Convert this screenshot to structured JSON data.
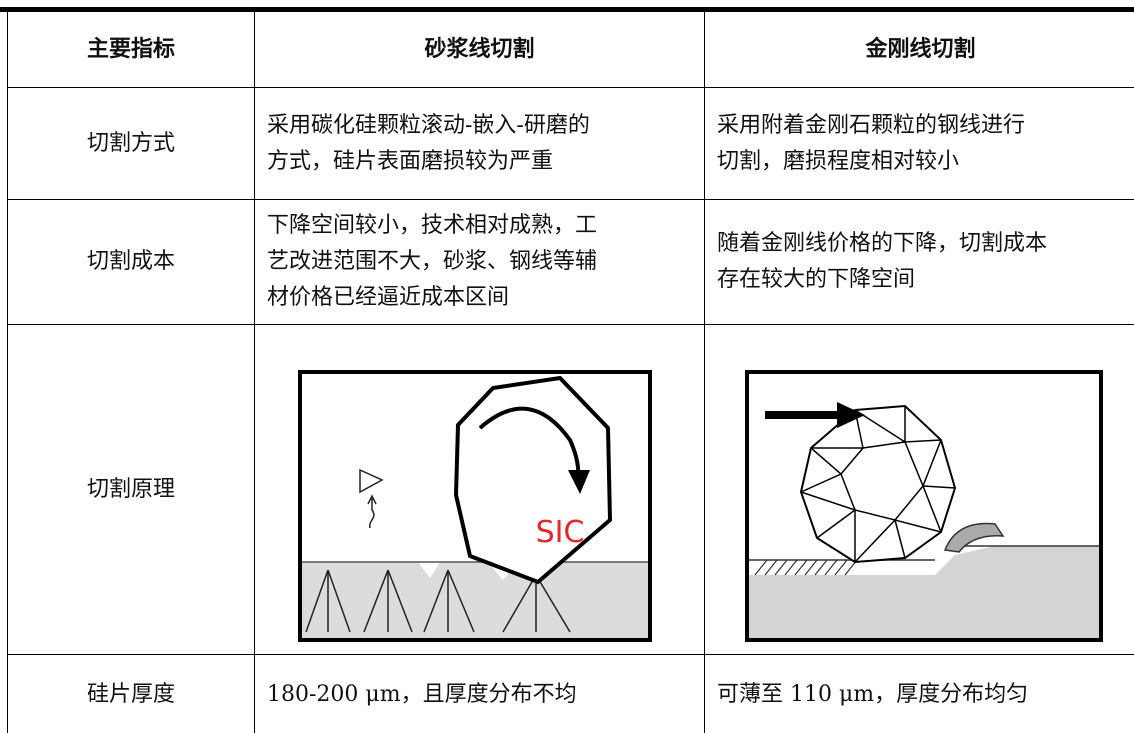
{
  "table": {
    "header": [
      "主要指标",
      "砂浆线切割",
      "金刚线切割"
    ],
    "rows": [
      {
        "label": "切割方式",
        "cells": [
          [
            "采用碳化硅颗粒滚动-嵌入-研磨的",
            "方式，硅片表面磨损较为严重"
          ],
          [
            "采用附着金刚石颗粒的钢线进行",
            "切割，磨损程度相对较小"
          ]
        ]
      },
      {
        "label": "切割成本",
        "cells": [
          [
            "下降空间较小，技术相对成熟，工",
            "艺改进范围不大，砂浆、钢线等辅",
            "材价格已经逼近成本区间"
          ],
          [
            "随着金刚线价格的下降，切割成本",
            "存在较大的下降空间"
          ]
        ]
      },
      {
        "label": "切割原理",
        "diagram_label": "SIC"
      },
      {
        "label": "硅片厚度",
        "cells": [
          [
            "180-200 μm，且厚度分布不均"
          ],
          [
            "可薄至 110 μm，厚度分布均匀"
          ]
        ]
      }
    ]
  }
}
